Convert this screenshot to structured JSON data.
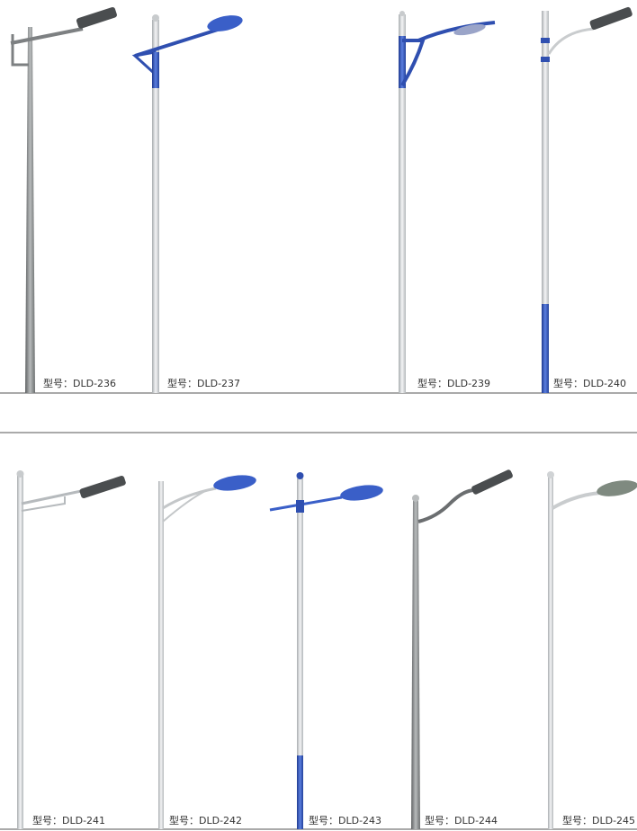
{
  "colors": {
    "pole_gray": "#8e9192",
    "pole_light": "#d9dcde",
    "accent_blue": "#2f4fb0",
    "lamp_dark": "#4a4d4f",
    "rule": "#555555"
  },
  "rows": [
    {
      "products": [
        {
          "model": "型号：DLD-236"
        },
        {
          "model": "型号：DLD-237"
        },
        {
          "model": "型号：DLD-239"
        },
        {
          "model": "型号：DLD-240"
        }
      ]
    },
    {
      "products": [
        {
          "model": "型号：DLD-241"
        },
        {
          "model": "型号：DLD-242"
        },
        {
          "model": "型号：DLD-243"
        },
        {
          "model": "型号：DLD-244"
        },
        {
          "model": "型号：DLD-245"
        }
      ]
    }
  ]
}
